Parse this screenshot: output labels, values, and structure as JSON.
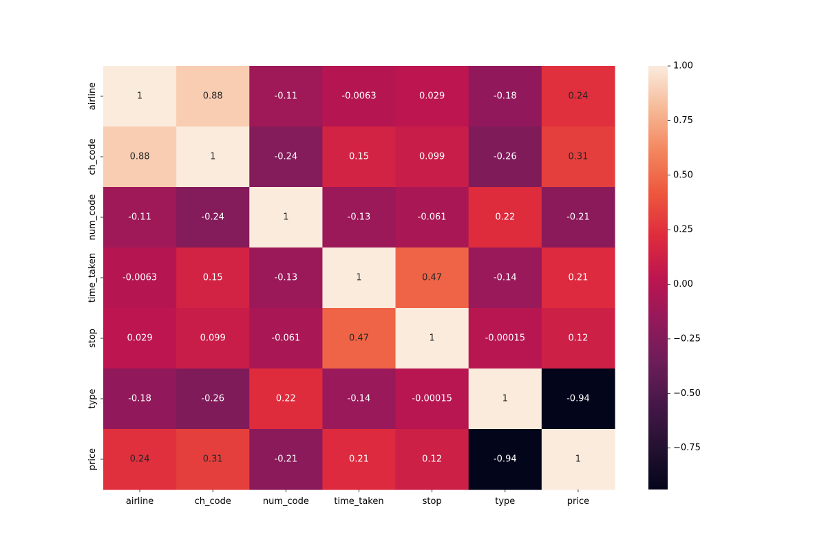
{
  "chart_data": {
    "type": "heatmap",
    "title": "",
    "xlabel": "",
    "ylabel": "",
    "x_categories": [
      "airline",
      "ch_code",
      "num_code",
      "time_taken",
      "stop",
      "type",
      "price"
    ],
    "y_categories": [
      "airline",
      "ch_code",
      "num_code",
      "time_taken",
      "stop",
      "type",
      "price"
    ],
    "values": [
      [
        1,
        0.88,
        -0.11,
        -0.0063,
        0.029,
        -0.18,
        0.24
      ],
      [
        0.88,
        1,
        -0.24,
        0.15,
        0.099,
        -0.26,
        0.31
      ],
      [
        -0.11,
        -0.24,
        1,
        -0.13,
        -0.061,
        0.22,
        -0.21
      ],
      [
        -0.0063,
        0.15,
        -0.13,
        1,
        0.47,
        -0.14,
        0.21
      ],
      [
        0.029,
        0.099,
        -0.061,
        0.47,
        1,
        -0.00015,
        0.12
      ],
      [
        -0.18,
        -0.26,
        0.22,
        -0.14,
        -0.00015,
        1,
        -0.94
      ],
      [
        0.24,
        0.31,
        -0.21,
        0.21,
        0.12,
        -0.94,
        1
      ]
    ],
    "value_labels": [
      [
        "1",
        "0.88",
        "-0.11",
        "-0.0063",
        "0.029",
        "-0.18",
        "0.24"
      ],
      [
        "0.88",
        "1",
        "-0.24",
        "0.15",
        "0.099",
        "-0.26",
        "0.31"
      ],
      [
        "-0.11",
        "-0.24",
        "1",
        "-0.13",
        "-0.061",
        "0.22",
        "-0.21"
      ],
      [
        "-0.0063",
        "0.15",
        "-0.13",
        "1",
        "0.47",
        "-0.14",
        "0.21"
      ],
      [
        "0.029",
        "0.099",
        "-0.061",
        "0.47",
        "1",
        "-0.00015",
        "0.12"
      ],
      [
        "-0.18",
        "-0.26",
        "0.22",
        "-0.14",
        "-0.00015",
        "1",
        "-0.94"
      ],
      [
        "0.24",
        "0.31",
        "-0.21",
        "0.21",
        "0.12",
        "-0.94",
        "1"
      ]
    ],
    "colormap": "rocket",
    "color_range": [
      -0.94,
      1.0
    ],
    "colorbar": {
      "ticks": [
        1.0,
        0.75,
        0.5,
        0.25,
        0.0,
        -0.25,
        -0.5,
        -0.75
      ],
      "tick_labels": [
        "1.00",
        "0.75",
        "0.50",
        "0.25",
        "0.00",
        "−0.25",
        "−0.50",
        "−0.75"
      ]
    },
    "grid": false,
    "legend": "colorbar-right"
  }
}
